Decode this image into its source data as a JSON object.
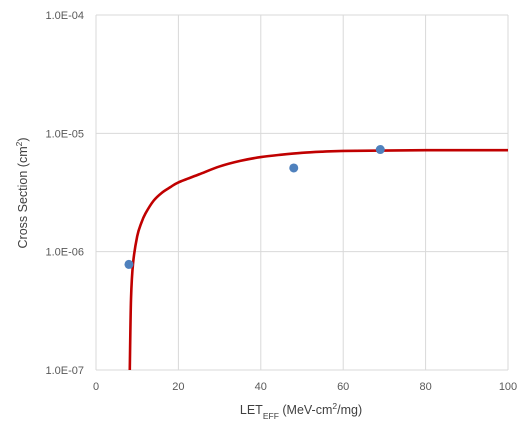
{
  "chart_data": {
    "type": "scatter",
    "title": "",
    "xlabel": {
      "main": "LET",
      "sub": "EFF",
      "rest_prefix": " (MeV-cm",
      "sup": "2",
      "rest_suffix": "/mg)"
    },
    "ylabel": {
      "main": "Cross Section (cm",
      "sup": "2",
      "suffix": ")"
    },
    "xlim": [
      0,
      100
    ],
    "ylim": [
      1e-07,
      0.0001
    ],
    "y_scale": "log",
    "grid": true,
    "x_ticks": [
      {
        "value": 0,
        "label": "0"
      },
      {
        "value": 20,
        "label": "20"
      },
      {
        "value": 40,
        "label": "40"
      },
      {
        "value": 60,
        "label": "60"
      },
      {
        "value": 80,
        "label": "80"
      },
      {
        "value": 100,
        "label": "100"
      }
    ],
    "y_ticks": [
      {
        "value": 1e-07,
        "label": "1.0E-07"
      },
      {
        "value": 1e-06,
        "label": "1.0E-06"
      },
      {
        "value": 1e-05,
        "label": "1.0E-05"
      },
      {
        "value": 0.0001,
        "label": "1.0E-04"
      }
    ],
    "series": [
      {
        "type": "scatter",
        "color": "#4f81bd",
        "points": [
          {
            "x": 8,
            "y": 7.8e-07
          },
          {
            "x": 48,
            "y": 5.1e-06
          },
          {
            "x": 69,
            "y": 7.3e-06
          }
        ]
      },
      {
        "type": "line",
        "color": "#c00000",
        "points": [
          {
            "x": 8.2,
            "y": 1e-07
          },
          {
            "x": 8.5,
            "y": 4e-07
          },
          {
            "x": 9,
            "y": 8e-07
          },
          {
            "x": 10,
            "y": 1.35e-06
          },
          {
            "x": 11,
            "y": 1.75e-06
          },
          {
            "x": 12,
            "y": 2.1e-06
          },
          {
            "x": 14,
            "y": 2.7e-06
          },
          {
            "x": 16,
            "y": 3.15e-06
          },
          {
            "x": 18,
            "y": 3.5e-06
          },
          {
            "x": 20,
            "y": 3.85e-06
          },
          {
            "x": 25,
            "y": 4.5e-06
          },
          {
            "x": 30,
            "y": 5.25e-06
          },
          {
            "x": 35,
            "y": 5.85e-06
          },
          {
            "x": 40,
            "y": 6.3e-06
          },
          {
            "x": 45,
            "y": 6.6e-06
          },
          {
            "x": 50,
            "y": 6.85e-06
          },
          {
            "x": 55,
            "y": 7e-06
          },
          {
            "x": 60,
            "y": 7.1e-06
          },
          {
            "x": 70,
            "y": 7.15e-06
          },
          {
            "x": 80,
            "y": 7.2e-06
          },
          {
            "x": 100,
            "y": 7.2e-06
          }
        ]
      }
    ]
  }
}
